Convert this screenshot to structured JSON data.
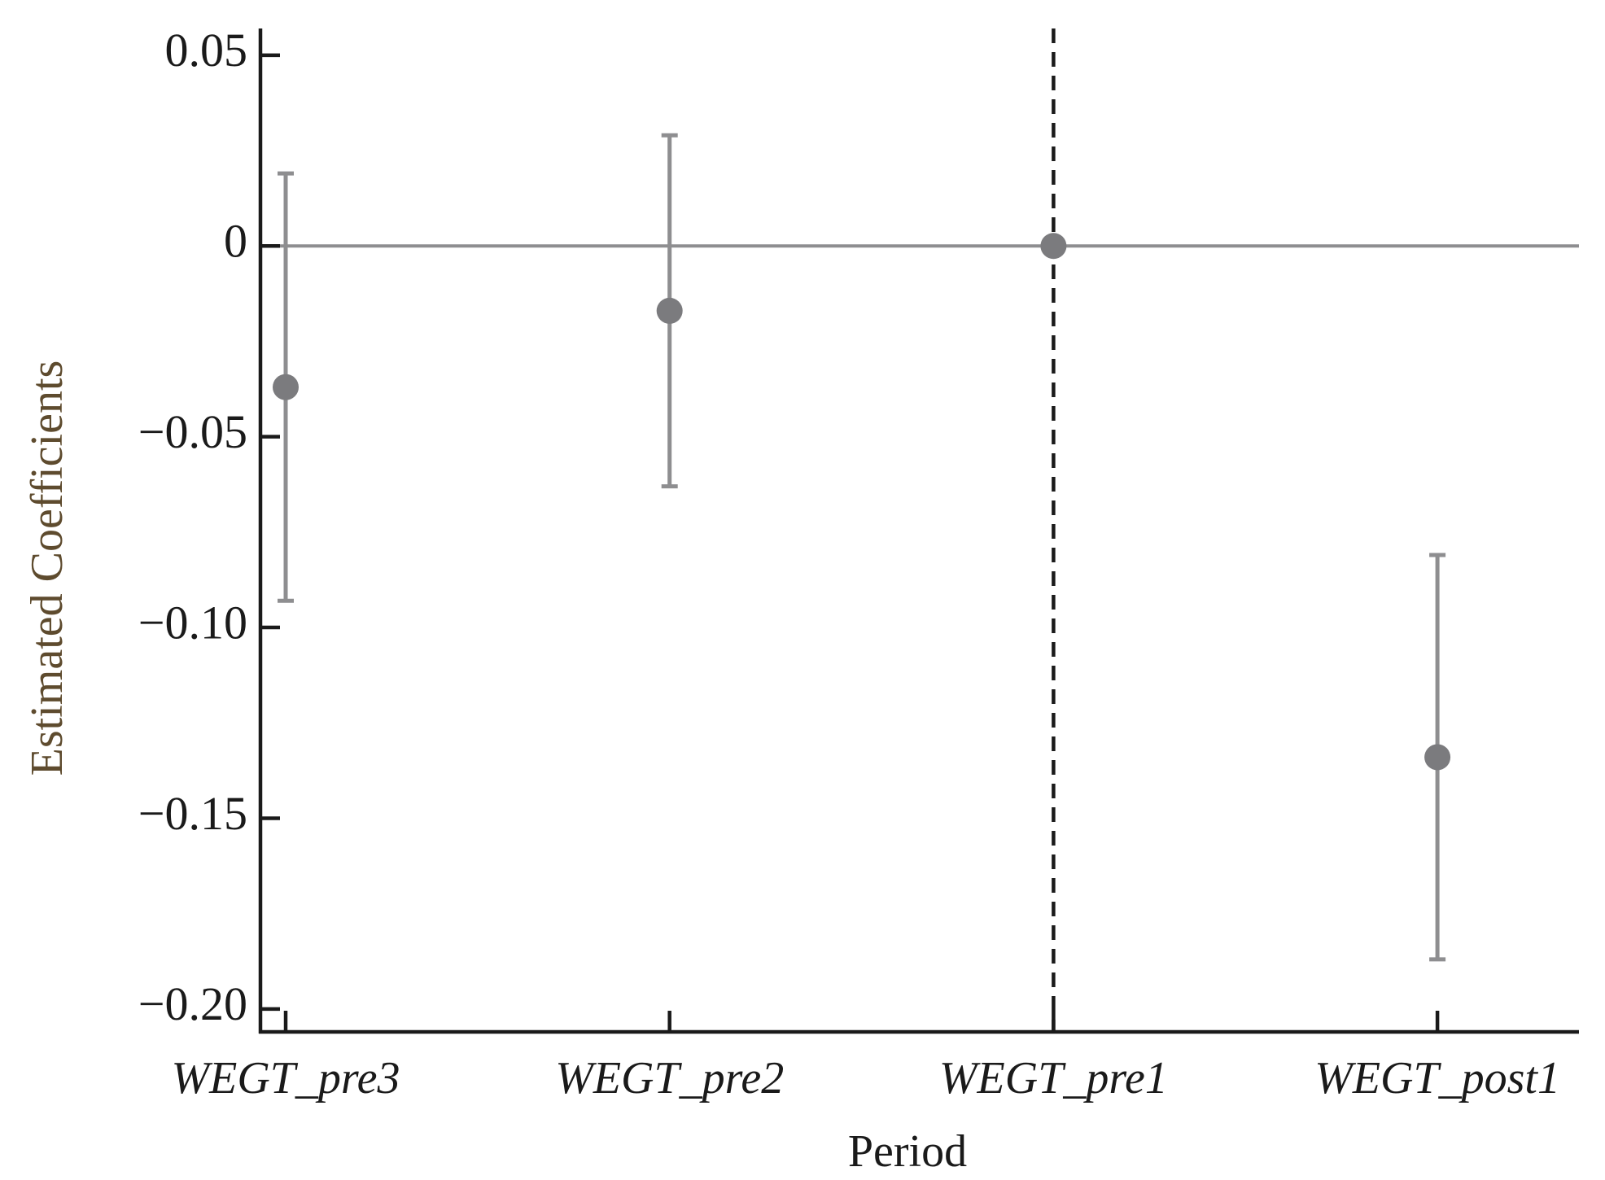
{
  "chart_data": {
    "type": "errorbar",
    "x_label": "Period",
    "y_label": "Estimated Coefficients",
    "categories": [
      "WEGT_pre3",
      "WEGT_pre2",
      "WEGT_pre1",
      "WEGT_post1"
    ],
    "series": [
      {
        "color": "#7b7b7e",
        "values": [
          -0.037,
          -0.017,
          0,
          -0.134
        ],
        "error": [
          0.056,
          0.046,
          null,
          0.053
        ]
      }
    ],
    "ylim": [
      -0.206,
      0.057
    ],
    "yticks": [
      0.05,
      0,
      {
        "value": -0.05,
        "label": "−0.05"
      },
      {
        "value": -0.1,
        "label": "−0.10"
      },
      {
        "value": -0.15,
        "label": "−0.15"
      },
      {
        "value": -0.2,
        "label": "−0.20"
      }
    ],
    "hline": 0,
    "vline_category": "WEGT_pre1"
  }
}
